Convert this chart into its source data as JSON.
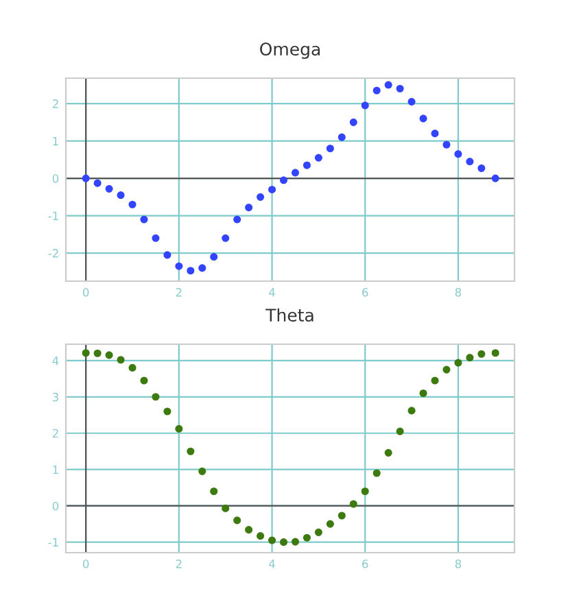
{
  "chart_data": [
    {
      "type": "scatter",
      "title": "Omega",
      "marker": "circle",
      "grid": true,
      "xlim": [
        -0.43,
        9.21
      ],
      "ylim": [
        -2.75,
        2.68
      ],
      "xticks": [
        0,
        2,
        4,
        6,
        8
      ],
      "yticks": [
        -2,
        -1,
        0,
        1,
        2
      ],
      "x": [
        0,
        0.25,
        0.5,
        0.75,
        1,
        1.25,
        1.5,
        1.75,
        2,
        2.25,
        2.5,
        2.75,
        3,
        3.25,
        3.5,
        3.75,
        4,
        4.25,
        4.5,
        4.75,
        5,
        5.25,
        5.5,
        5.75,
        6,
        6.25,
        6.5,
        6.75,
        7,
        7.25,
        7.5,
        7.75,
        8,
        8.25,
        8.5,
        8.8
      ],
      "series": [
        {
          "color": "#3344ff",
          "values": [
            0,
            -0.13,
            -0.28,
            -0.45,
            -0.7,
            -1.1,
            -1.6,
            -2.05,
            -2.35,
            -2.47,
            -2.4,
            -2.1,
            -1.6,
            -1.1,
            -0.78,
            -0.5,
            -0.3,
            -0.05,
            0.15,
            0.35,
            0.55,
            0.8,
            1.1,
            1.5,
            1.95,
            2.35,
            2.5,
            2.4,
            2.05,
            1.6,
            1.2,
            0.9,
            0.65,
            0.45,
            0.27,
            0
          ]
        }
      ]
    },
    {
      "type": "scatter",
      "title": "Theta",
      "marker": "circle",
      "grid": true,
      "xlim": [
        -0.43,
        9.21
      ],
      "ylim": [
        -1.29,
        4.45
      ],
      "xticks": [
        0,
        2,
        4,
        6,
        8
      ],
      "yticks": [
        -1,
        0,
        1,
        2,
        3,
        4
      ],
      "x": [
        0,
        0.25,
        0.5,
        0.75,
        1,
        1.25,
        1.5,
        1.75,
        2,
        2.25,
        2.5,
        2.75,
        3,
        3.25,
        3.5,
        3.75,
        4,
        4.25,
        4.5,
        4.75,
        5,
        5.25,
        5.5,
        5.75,
        6,
        6.25,
        6.5,
        6.75,
        7,
        7.25,
        7.5,
        7.75,
        8,
        8.25,
        8.5,
        8.8
      ],
      "series": [
        {
          "color": "#3d7a0f",
          "values": [
            4.21,
            4.2,
            4.15,
            4.02,
            3.8,
            3.45,
            3.0,
            2.6,
            2.12,
            1.5,
            0.95,
            0.4,
            -0.07,
            -0.4,
            -0.66,
            -0.83,
            -0.95,
            -1.0,
            -0.99,
            -0.88,
            -0.73,
            -0.5,
            -0.27,
            0.05,
            0.4,
            0.9,
            1.46,
            2.05,
            2.62,
            3.1,
            3.45,
            3.75,
            3.94,
            4.08,
            4.18,
            4.21
          ]
        }
      ]
    }
  ]
}
